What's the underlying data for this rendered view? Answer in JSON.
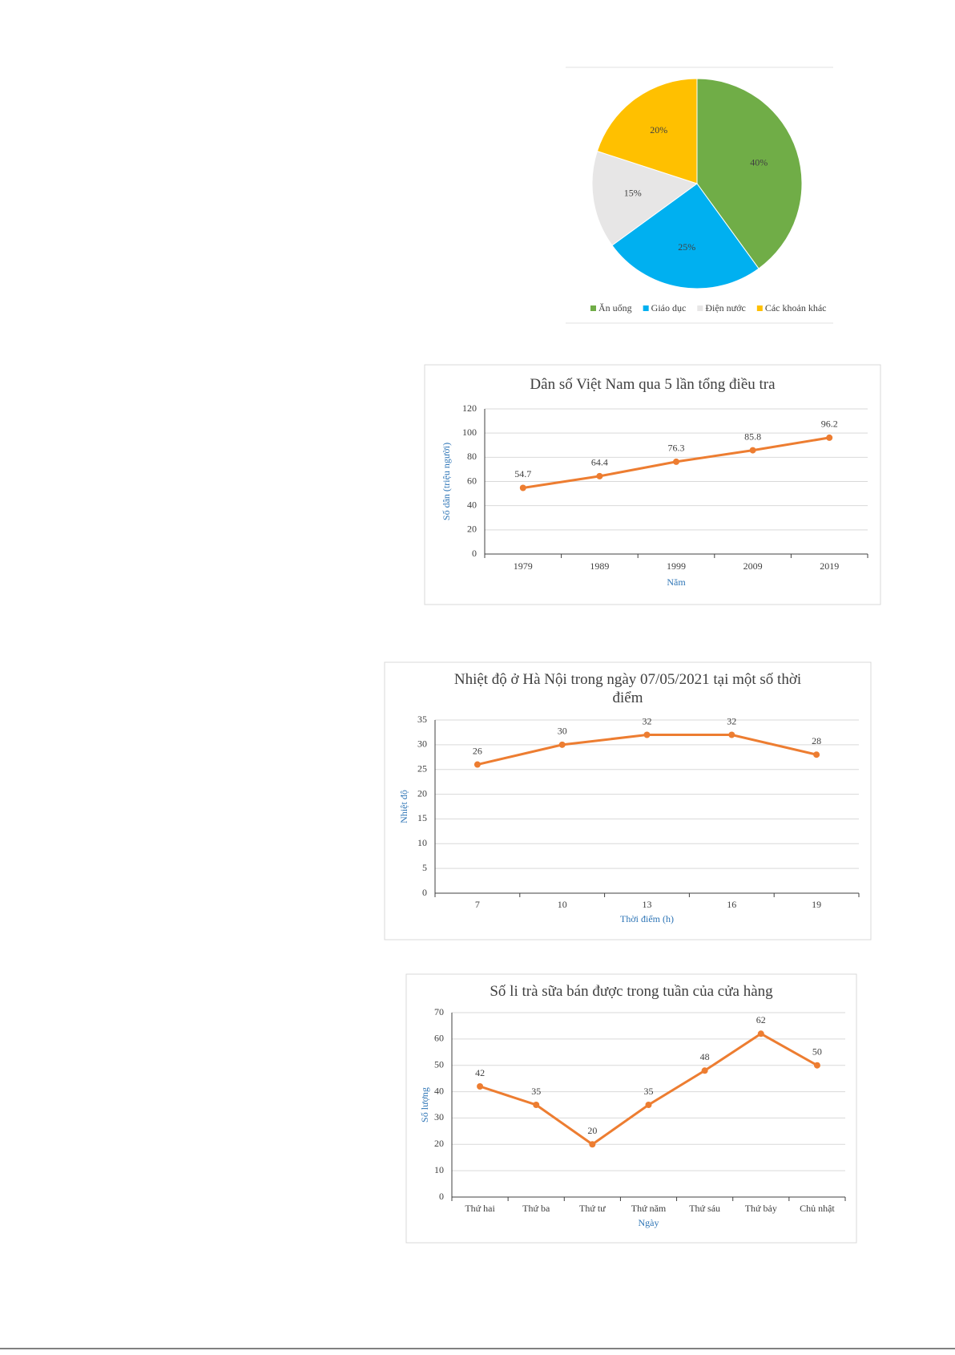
{
  "chart_data": [
    {
      "type": "pie",
      "categories": [
        "Ăn uống",
        "Giáo dục",
        "Điện nước",
        "Các khoản khác"
      ],
      "values": [
        40,
        25,
        15,
        20
      ],
      "value_labels": [
        "40%",
        "25%",
        "15%",
        "20%"
      ],
      "colors": [
        "#70ad47",
        "#00b0f0",
        "#e7e6e6",
        "#ffc000"
      ],
      "legend": "bottom"
    },
    {
      "type": "line",
      "title": "Dân số Việt Nam qua 5 lần tổng điều tra",
      "xlabel": "Năm",
      "ylabel": "Số dân (triệu người)",
      "categories": [
        "1979",
        "1989",
        "1999",
        "2009",
        "2019"
      ],
      "values": [
        54.7,
        64.4,
        76.3,
        85.8,
        96.2
      ],
      "color": "#ed7d31",
      "ylim": [
        0,
        120
      ],
      "yticks": [
        0,
        20,
        40,
        60,
        80,
        100,
        120
      ],
      "grid": true
    },
    {
      "type": "line",
      "title": "Nhiệt độ ở Hà Nội trong ngày  07/05/2021  tại một số thời điểm",
      "xlabel": "Thời điểm (h)",
      "ylabel": "Nhiệt độ",
      "categories": [
        "7",
        "10",
        "13",
        "16",
        "19"
      ],
      "values": [
        26,
        30,
        32,
        32,
        28
      ],
      "color": "#ed7d31",
      "ylim": [
        0,
        35
      ],
      "yticks": [
        0,
        5,
        10,
        15,
        20,
        25,
        30,
        35
      ],
      "grid": true
    },
    {
      "type": "line",
      "title": "Số li trà sữa bán được trong tuần của cửa hàng",
      "xlabel": "Ngày",
      "ylabel": "Số lượng",
      "categories": [
        "Thứ hai",
        "Thứ ba",
        "Thứ tư",
        "Thứ năm",
        "Thứ sáu",
        "Thứ bảy",
        "Chủ nhật"
      ],
      "values": [
        42,
        35,
        20,
        35,
        48,
        62,
        50
      ],
      "color": "#ed7d31",
      "ylim": [
        0,
        70
      ],
      "yticks": [
        0,
        10,
        20,
        30,
        40,
        50,
        60,
        70
      ],
      "grid": true
    }
  ]
}
